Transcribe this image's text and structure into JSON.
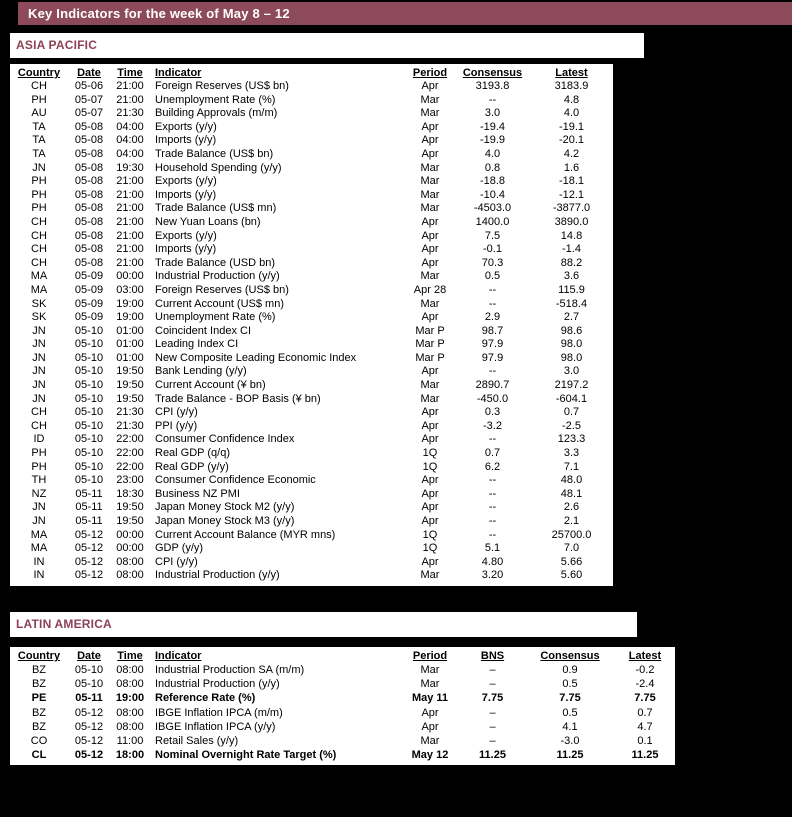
{
  "header": {
    "title": "Key Indicators for the week of May 8 – 12"
  },
  "colors": {
    "page_bg": "#000000",
    "bar_bg": "#8D4A5B",
    "title_text": "#FFFFFF",
    "section_text": "#8C4156"
  },
  "sections": [
    {
      "title": "ASIA PACIFIC",
      "columns": [
        "Country",
        "Date",
        "Time",
        "Indicator",
        "Period",
        "Consensus",
        "Latest"
      ],
      "rows": [
        {
          "cells": [
            "CH",
            "05-06",
            "21:00",
            "Foreign Reserves (US$ bn)",
            "Apr",
            "3193.8",
            "3183.9"
          ]
        },
        {
          "cells": [
            "PH",
            "05-07",
            "21:00",
            "Unemployment Rate (%)",
            "Mar",
            "--",
            "4.8"
          ]
        },
        {
          "cells": [
            "AU",
            "05-07",
            "21:30",
            "Building Approvals (m/m)",
            "Mar",
            "3.0",
            "4.0"
          ]
        },
        {
          "cells": [
            "TA",
            "05-08",
            "04:00",
            "Exports (y/y)",
            "Apr",
            "-19.4",
            "-19.1"
          ]
        },
        {
          "cells": [
            "TA",
            "05-08",
            "04:00",
            "Imports (y/y)",
            "Apr",
            "-19.9",
            "-20.1"
          ]
        },
        {
          "cells": [
            "TA",
            "05-08",
            "04:00",
            "Trade Balance (US$ bn)",
            "Apr",
            "4.0",
            "4.2"
          ]
        },
        {
          "cells": [
            "JN",
            "05-08",
            "19:30",
            "Household Spending (y/y)",
            "Mar",
            "0.8",
            "1.6"
          ]
        },
        {
          "cells": [
            "PH",
            "05-08",
            "21:00",
            "Exports (y/y)",
            "Mar",
            "-18.8",
            "-18.1"
          ]
        },
        {
          "cells": [
            "PH",
            "05-08",
            "21:00",
            "Imports (y/y)",
            "Mar",
            "-10.4",
            "-12.1"
          ]
        },
        {
          "cells": [
            "PH",
            "05-08",
            "21:00",
            "Trade Balance (US$ mn)",
            "Mar",
            "-4503.0",
            "-3877.0"
          ]
        },
        {
          "cells": [
            "CH",
            "05-08",
            "21:00",
            "New Yuan Loans (bn)",
            "Apr",
            "1400.0",
            "3890.0"
          ]
        },
        {
          "cells": [
            "CH",
            "05-08",
            "21:00",
            "Exports (y/y)",
            "Apr",
            "7.5",
            "14.8"
          ]
        },
        {
          "cells": [
            "CH",
            "05-08",
            "21:00",
            "Imports (y/y)",
            "Apr",
            "-0.1",
            "-1.4"
          ]
        },
        {
          "cells": [
            "CH",
            "05-08",
            "21:00",
            "Trade Balance (USD bn)",
            "Apr",
            "70.3",
            "88.2"
          ]
        },
        {
          "cells": [
            "MA",
            "05-09",
            "00:00",
            "Industrial Production (y/y)",
            "Mar",
            "0.5",
            "3.6"
          ]
        },
        {
          "cells": [
            "MA",
            "05-09",
            "03:00",
            "Foreign Reserves (US$ bn)",
            "Apr 28",
            "--",
            "115.9"
          ]
        },
        {
          "cells": [
            "SK",
            "05-09",
            "19:00",
            "Current Account (US$ mn)",
            "Mar",
            "--",
            "-518.4"
          ]
        },
        {
          "cells": [
            "SK",
            "05-09",
            "19:00",
            "Unemployment Rate (%)",
            "Apr",
            "2.9",
            "2.7"
          ]
        },
        {
          "cells": [
            "JN",
            "05-10",
            "01:00",
            "Coincident Index CI",
            "Mar P",
            "98.7",
            "98.6"
          ]
        },
        {
          "cells": [
            "JN",
            "05-10",
            "01:00",
            "Leading Index CI",
            "Mar P",
            "97.9",
            "98.0"
          ]
        },
        {
          "cells": [
            "JN",
            "05-10",
            "01:00",
            "New Composite Leading Economic Index",
            "Mar P",
            "97.9",
            "98.0"
          ]
        },
        {
          "cells": [
            "JN",
            "05-10",
            "19:50",
            "Bank Lending (y/y)",
            "Apr",
            "--",
            "3.0"
          ]
        },
        {
          "cells": [
            "JN",
            "05-10",
            "19:50",
            "Current Account (¥ bn)",
            "Mar",
            "2890.7",
            "2197.2"
          ]
        },
        {
          "cells": [
            "JN",
            "05-10",
            "19:50",
            "Trade Balance - BOP Basis (¥ bn)",
            "Mar",
            "-450.0",
            "-604.1"
          ]
        },
        {
          "cells": [
            "CH",
            "05-10",
            "21:30",
            "CPI (y/y)",
            "Apr",
            "0.3",
            "0.7"
          ]
        },
        {
          "cells": [
            "CH",
            "05-10",
            "21:30",
            "PPI (y/y)",
            "Apr",
            "-3.2",
            "-2.5"
          ]
        },
        {
          "cells": [
            "ID",
            "05-10",
            "22:00",
            "Consumer Confidence Index",
            "Apr",
            "--",
            "123.3"
          ]
        },
        {
          "cells": [
            "PH",
            "05-10",
            "22:00",
            "Real GDP (q/q)",
            "1Q",
            "0.7",
            "3.3"
          ]
        },
        {
          "cells": [
            "PH",
            "05-10",
            "22:00",
            "Real GDP (y/y)",
            "1Q",
            "6.2",
            "7.1"
          ]
        },
        {
          "cells": [
            "TH",
            "05-10",
            "23:00",
            "Consumer Confidence Economic",
            "Apr",
            "--",
            "48.0"
          ]
        },
        {
          "cells": [
            "NZ",
            "05-11",
            "18:30",
            "Business NZ PMI",
            "Apr",
            "--",
            "48.1"
          ]
        },
        {
          "cells": [
            "JN",
            "05-11",
            "19:50",
            "Japan Money Stock M2 (y/y)",
            "Apr",
            "--",
            "2.6"
          ]
        },
        {
          "cells": [
            "JN",
            "05-11",
            "19:50",
            "Japan Money Stock M3 (y/y)",
            "Apr",
            "--",
            "2.1"
          ]
        },
        {
          "cells": [
            "MA",
            "05-12",
            "00:00",
            "Current Account Balance (MYR mns)",
            "1Q",
            "--",
            "25700.0"
          ]
        },
        {
          "cells": [
            "MA",
            "05-12",
            "00:00",
            "GDP (y/y)",
            "1Q",
            "5.1",
            "7.0"
          ]
        },
        {
          "cells": [
            "IN",
            "05-12",
            "08:00",
            "CPI (y/y)",
            "Apr",
            "4.80",
            "5.66"
          ]
        },
        {
          "cells": [
            "IN",
            "05-12",
            "08:00",
            "Industrial Production (y/y)",
            "Mar",
            "3.20",
            "5.60"
          ]
        }
      ]
    },
    {
      "title": "LATIN AMERICA",
      "columns": [
        "Country",
        "Date",
        "Time",
        "Indicator",
        "Period",
        "BNS",
        "Consensus",
        "Latest"
      ],
      "rows": [
        {
          "cells": [
            "BZ",
            "05-10",
            "08:00",
            "Industrial Production SA (m/m)",
            "Mar",
            "–",
            "0.9",
            "-0.2"
          ]
        },
        {
          "cells": [
            "BZ",
            "05-10",
            "08:00",
            "Industrial Production (y/y)",
            "Mar",
            "–",
            "0.5",
            "-2.4"
          ]
        },
        {
          "cells": [
            "PE",
            "05-11",
            "19:00",
            "Reference Rate (%)",
            "May 11",
            "7.75",
            "7.75",
            "7.75"
          ],
          "bold": true
        },
        {
          "cells": [
            "BZ",
            "05-12",
            "08:00",
            "IBGE Inflation IPCA (m/m)",
            "Apr",
            "–",
            "0.5",
            "0.7"
          ]
        },
        {
          "cells": [
            "BZ",
            "05-12",
            "08:00",
            "IBGE Inflation IPCA (y/y)",
            "Apr",
            "–",
            "4.1",
            "4.7"
          ]
        },
        {
          "cells": [
            "CO",
            "05-12",
            "11:00",
            "Retail Sales (y/y)",
            "Mar",
            "–",
            "-3.0",
            "0.1"
          ]
        },
        {
          "cells": [
            "CL",
            "05-12",
            "18:00",
            "Nominal Overnight Rate Target (%)",
            "May 12",
            "11.25",
            "11.25",
            "11.25"
          ],
          "bold": true
        }
      ]
    }
  ]
}
